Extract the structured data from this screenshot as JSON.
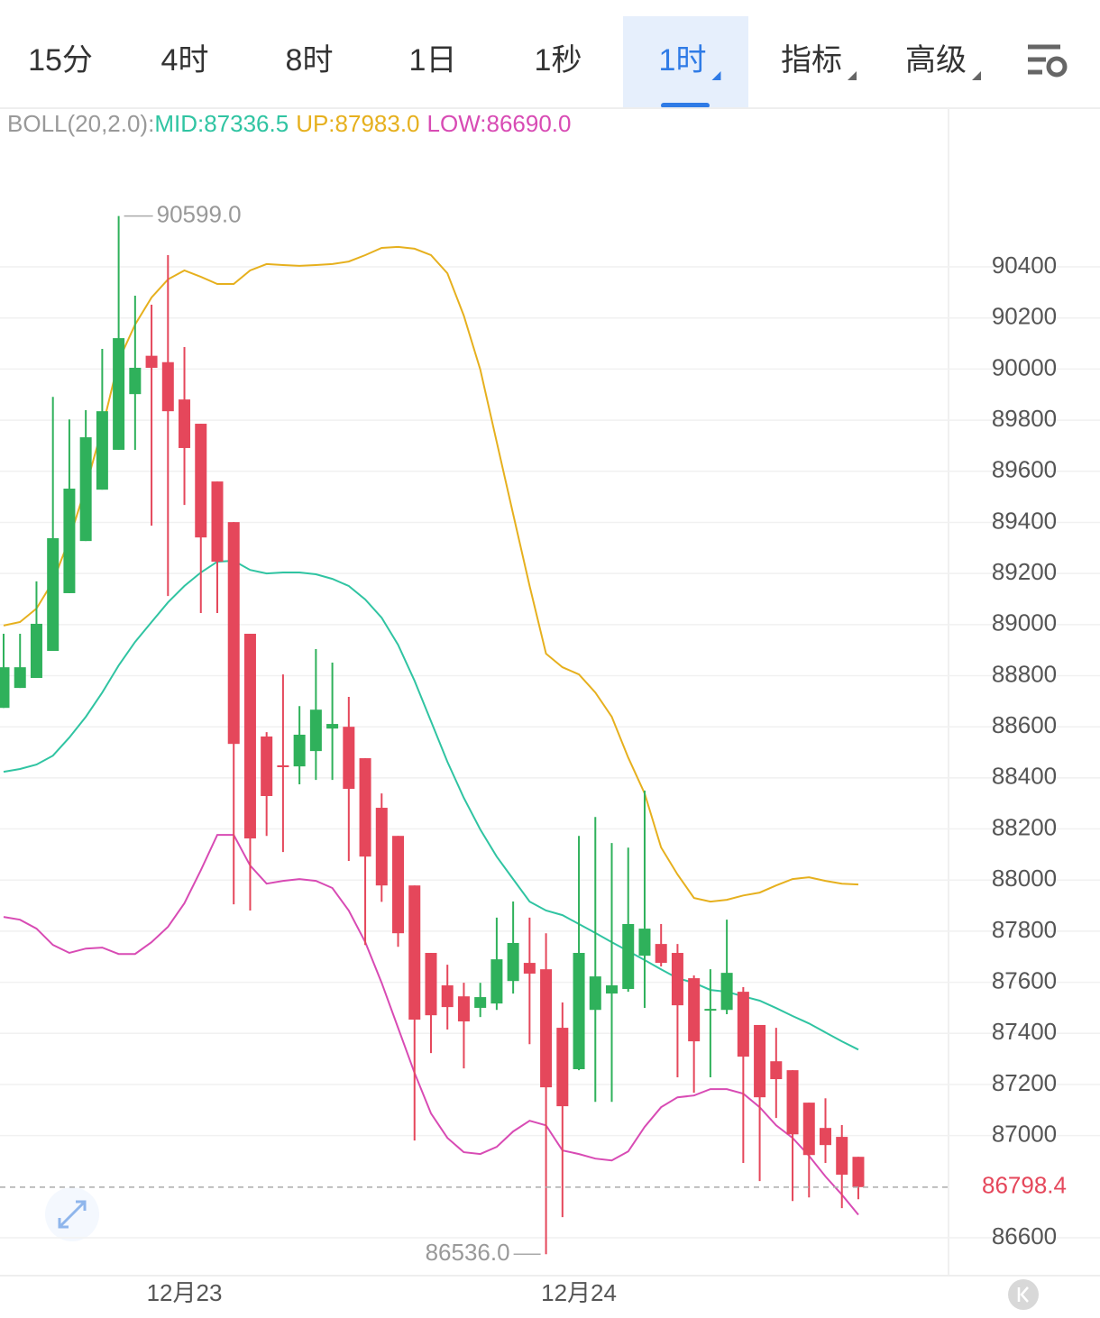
{
  "tabs": [
    {
      "label": "15分",
      "dropdown": false
    },
    {
      "label": "4时",
      "dropdown": false
    },
    {
      "label": "8时",
      "dropdown": false
    },
    {
      "label": "1日",
      "dropdown": false
    },
    {
      "label": "1秒",
      "dropdown": false
    },
    {
      "label": "1时",
      "dropdown": true
    },
    {
      "label": "指标",
      "dropdown": true
    },
    {
      "label": "高级",
      "dropdown": true
    }
  ],
  "active_tab": 5,
  "chart_data": {
    "type": "candlestick",
    "indicator": "BOLL(20,2.0):",
    "categories": [
      null,
      null,
      null,
      null,
      null,
      null,
      null,
      null,
      null,
      null,
      null,
      "12月23",
      null,
      null,
      null,
      null,
      null,
      null,
      null,
      null,
      null,
      null,
      null,
      null,
      null,
      null,
      null,
      null,
      null,
      null,
      null,
      null,
      null,
      null,
      null,
      "12月24",
      null,
      null,
      null,
      null,
      null,
      null,
      null,
      null,
      null,
      null,
      null,
      null,
      null,
      null,
      null,
      null,
      null
    ],
    "open": [
      88674,
      88752,
      88791,
      88897,
      89123,
      89327,
      89528,
      89684,
      89902,
      90052,
      90027,
      89881,
      89786,
      89560,
      89401,
      88964,
      88562,
      88449,
      88445,
      88505,
      88593,
      88600,
      88477,
      88283,
      88173,
      87979,
      87715,
      87588,
      87545,
      87500,
      87517,
      87605,
      87676,
      87651,
      87422,
      87260,
      87492,
      87556,
      87574,
      87704,
      87750,
      87715,
      87616,
      87492,
      87492,
      87563,
      87433,
      87291,
      87256,
      87129,
      87030,
      86995,
      86917
    ],
    "high": [
      88964,
      88964,
      89169,
      89891,
      89803,
      89839,
      90079,
      90599,
      90287,
      90252,
      90446,
      90086,
      89786,
      89560,
      89401,
      88964,
      88579,
      88805,
      88681,
      88904,
      88851,
      88717,
      88477,
      88339,
      88173,
      87979,
      87715,
      87669,
      87598,
      87598,
      87853,
      87916,
      87853,
      87792,
      87521,
      88173,
      88247,
      88145,
      88127,
      88350,
      87828,
      87750,
      87627,
      87651,
      87845,
      87581,
      87433,
      87422,
      87256,
      87129,
      87146,
      87041,
      86917
    ],
    "low": [
      88674,
      88752,
      88791,
      88897,
      89123,
      89327,
      89528,
      89684,
      89684,
      89387,
      89112,
      89468,
      89045,
      89045,
      87905,
      87881,
      88173,
      88110,
      88375,
      88392,
      88392,
      88075,
      87746,
      87915,
      87739,
      86981,
      87323,
      87415,
      87263,
      87464,
      87492,
      87556,
      87358,
      86536,
      86681,
      87256,
      87132,
      87132,
      87563,
      87500,
      87662,
      87228,
      87168,
      87228,
      87475,
      86893,
      86822,
      87069,
      86744,
      86758,
      86893,
      86716,
      86751
    ],
    "close": [
      88833,
      88833,
      89003,
      89338,
      89532,
      89733,
      89835,
      90121,
      90005,
      90005,
      89835,
      89691,
      89341,
      89246,
      88533,
      88163,
      88329,
      88445,
      88569,
      88667,
      88611,
      88357,
      88092,
      87979,
      87792,
      87454,
      87471,
      87503,
      87447,
      87542,
      87690,
      87754,
      87634,
      87189,
      87115,
      87715,
      87623,
      87588,
      87828,
      87810,
      87676,
      87510,
      87369,
      87496,
      87637,
      87309,
      87150,
      87221,
      87005,
      86924,
      86963,
      86847,
      86798.4
    ],
    "up_color": "#2fb15b",
    "down_color": "#e5475b",
    "series": [
      {
        "name": "MID:87336.5",
        "color": "#30c4a2",
        "values": [
          88424,
          88435,
          88452,
          88487,
          88558,
          88639,
          88734,
          88840,
          88932,
          89010,
          89087,
          89151,
          89204,
          89246,
          89250,
          89214,
          89200,
          89204,
          89204,
          89197,
          89179,
          89151,
          89098,
          89027,
          88921,
          88780,
          88622,
          88463,
          88322,
          88198,
          88092,
          88004,
          87916,
          87881,
          87863,
          87828,
          87793,
          87757,
          87722,
          87687,
          87651,
          87616,
          87598,
          87570,
          87563,
          87545,
          87528,
          87499,
          87468,
          87439,
          87404,
          87369,
          87336.5
        ]
      },
      {
        "name": "UP:87983.0",
        "color": "#e6b01e",
        "values": [
          88996,
          89010,
          89063,
          89168,
          89334,
          89539,
          89768,
          90033,
          90174,
          90280,
          90351,
          90386,
          90361,
          90333,
          90333,
          90386,
          90411,
          90407,
          90404,
          90407,
          90411,
          90421,
          90446,
          90474,
          90478,
          90471,
          90446,
          90375,
          90209,
          89998,
          89715,
          89433,
          89151,
          88886,
          88833,
          88805,
          88734,
          88639,
          88480,
          88339,
          88128,
          88022,
          87930,
          87916,
          87923,
          87940,
          87951,
          87979,
          88004,
          88011,
          87997,
          87986,
          87983
        ]
      },
      {
        "name": "LOW:86690.0",
        "color": "#d84bb4",
        "values": [
          87856,
          87845,
          87810,
          87746,
          87715,
          87732,
          87736,
          87711,
          87711,
          87757,
          87817,
          87909,
          88039,
          88177,
          88177,
          88057,
          87986,
          87997,
          88004,
          87997,
          87969,
          87881,
          87757,
          87598,
          87422,
          87245,
          87087,
          86991,
          86935,
          86928,
          86956,
          87016,
          87058,
          87040,
          86942,
          86928,
          86910,
          86903,
          86938,
          87034,
          87111,
          87150,
          87157,
          87182,
          87182,
          87164,
          87111,
          87040,
          86991,
          86921,
          86840,
          86769,
          86690
        ]
      }
    ],
    "ylim": [
      86452,
      91021
    ],
    "yticks": [
      86600,
      87000,
      87200,
      87400,
      87600,
      87800,
      88000,
      88200,
      88400,
      88600,
      88800,
      89000,
      89200,
      89400,
      89600,
      89800,
      90000,
      90200,
      90400
    ],
    "grid": true,
    "last_price": 86798.4,
    "max_label": {
      "value": 90599,
      "label": "90599.0"
    },
    "min_label": {
      "value": 86536,
      "label": "86536.0"
    }
  }
}
